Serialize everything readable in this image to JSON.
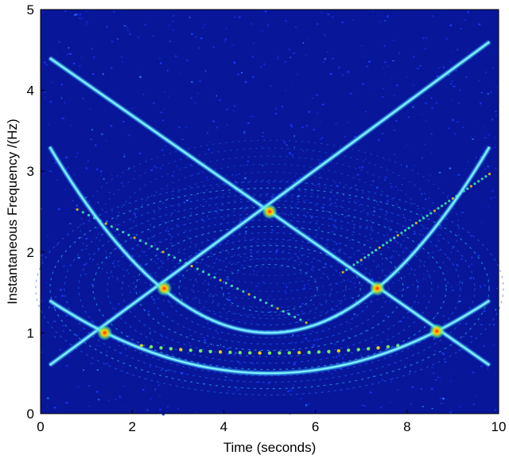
{
  "chart_data": {
    "type": "heatmap",
    "title": "",
    "xlabel": "Time (seconds)",
    "ylabel": "Instantaneous Frequency /(Hz)",
    "xlim": [
      0,
      10
    ],
    "ylim": [
      0,
      5
    ],
    "xticks": [
      0,
      2,
      4,
      6,
      8,
      10
    ],
    "yticks": [
      0,
      1,
      2,
      3,
      4,
      5
    ],
    "xtick_labels": [
      "0",
      "2",
      "4",
      "6",
      "8",
      "10"
    ],
    "ytick_labels": [
      "0",
      "1",
      "2",
      "3",
      "4",
      "5"
    ],
    "grid": false,
    "colormap": "jet",
    "background_color": "#08169a",
    "ridges": [
      {
        "shape": "linear-descending",
        "x": [
          0.2,
          9.8
        ],
        "y": [
          4.4,
          0.6
        ]
      },
      {
        "shape": "linear-ascending",
        "x": [
          0.2,
          9.8
        ],
        "y": [
          0.6,
          4.6
        ]
      },
      {
        "shape": "parabola",
        "x_vertex": 5.0,
        "y_min": 0.5,
        "y_edges": 1.4
      },
      {
        "shape": "parabola",
        "x_vertex": 5.0,
        "y_min": 1.0,
        "y_edges": 3.3
      }
    ],
    "hotspots": [
      {
        "x": 1.4,
        "y": 1.0
      },
      {
        "x": 2.7,
        "y": 1.55
      },
      {
        "x": 5.0,
        "y": 2.5
      },
      {
        "x": 7.35,
        "y": 1.55
      },
      {
        "x": 8.65,
        "y": 1.02
      }
    ]
  }
}
